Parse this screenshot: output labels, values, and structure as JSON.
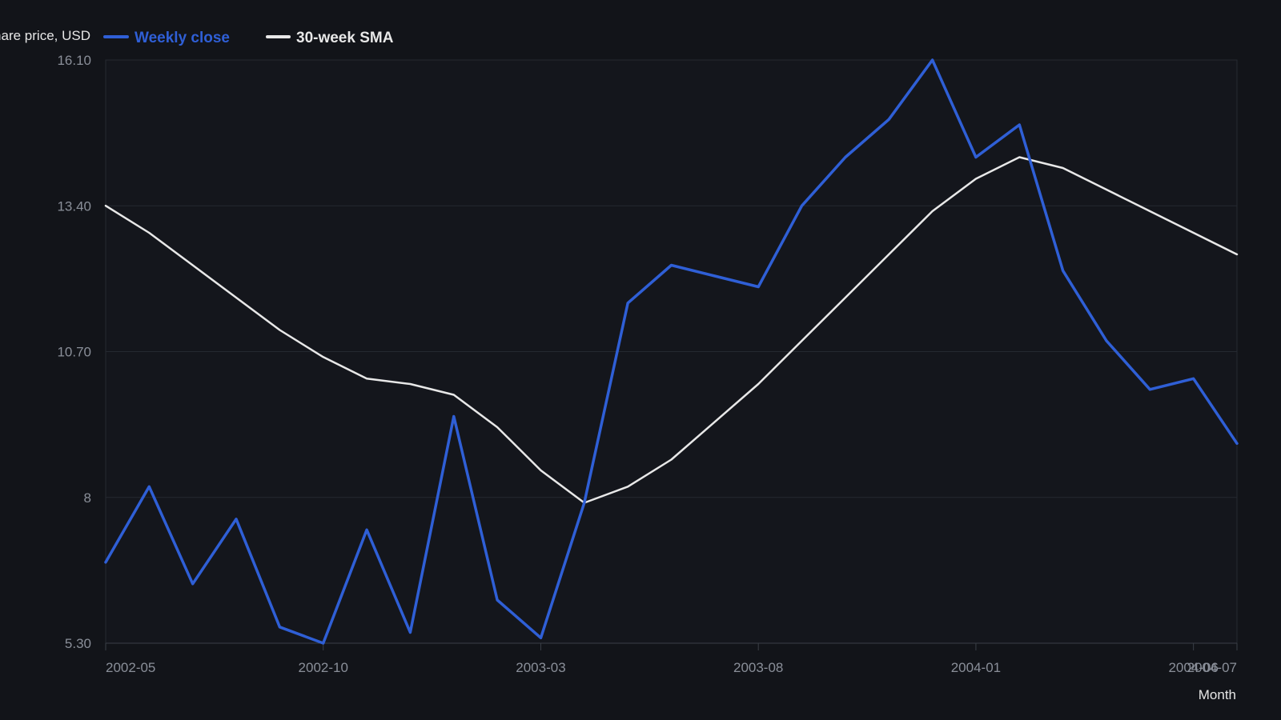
{
  "chart_data": {
    "type": "line",
    "ylabel": "Share price, USD",
    "xlabel": "Month",
    "ylim": [
      5.3,
      16.1
    ],
    "y_ticks": [
      "5.30",
      "8",
      "10.70",
      "13.40",
      "16.10"
    ],
    "x_start": "2002-05",
    "x_end": "2004-07",
    "x_ticks": [
      "2002-05",
      "2002-10",
      "2003-03",
      "2003-08",
      "2004-01",
      "2004-06",
      "2004-07"
    ],
    "grid": true,
    "legend_position": "top-left",
    "series": [
      {
        "name": "Weekly close",
        "color": "#2f5fd6",
        "x": [
          "2002-05",
          "2002-06",
          "2002-07",
          "2002-08",
          "2002-09",
          "2002-10",
          "2002-11",
          "2002-12",
          "2003-01",
          "2003-02",
          "2003-03",
          "2003-04",
          "2003-05",
          "2003-06",
          "2003-07",
          "2003-08",
          "2003-09",
          "2003-10",
          "2003-11",
          "2003-12",
          "2004-01",
          "2004-02",
          "2004-03",
          "2004-04",
          "2004-05",
          "2004-06",
          "2004-07"
        ],
        "values": [
          6.8,
          8.2,
          6.4,
          7.6,
          5.6,
          5.3,
          7.4,
          5.5,
          9.5,
          6.1,
          5.4,
          7.9,
          11.6,
          12.3,
          12.1,
          11.9,
          13.4,
          14.3,
          15.0,
          16.1,
          14.3,
          14.9,
          12.2,
          10.9,
          10.0,
          10.2,
          9.0
        ],
        "data_labels": [
          "6.8",
          "8.2",
          "6.4",
          "7.6",
          "5.6",
          "5.3",
          "7.4",
          "5.5",
          "9.5",
          "6.1",
          "5.4",
          "7.9",
          "11.6",
          "12.3",
          "12.1",
          "11.9",
          "13.4",
          "14.3",
          "15.0",
          "16.1",
          "14.3",
          "14.9",
          "12.2",
          "10.9",
          "10.0",
          "10.2",
          "9.0"
        ]
      },
      {
        "name": "30-week SMA",
        "color": "#e8e8e8",
        "x": [
          "2002-05",
          "2002-06",
          "2002-07",
          "2002-08",
          "2002-09",
          "2002-10",
          "2002-11",
          "2002-12",
          "2003-01",
          "2003-02",
          "2003-03",
          "2003-04",
          "2003-05",
          "2003-06",
          "2003-07",
          "2003-08",
          "2003-09",
          "2003-10",
          "2003-11",
          "2003-12",
          "2004-01",
          "2004-02",
          "2004-03",
          "2004-04",
          "2004-05",
          "2004-06",
          "2004-07"
        ],
        "values": [
          13.4,
          12.9,
          12.3,
          11.7,
          11.1,
          10.6,
          10.2,
          10.1,
          9.9,
          9.3,
          8.5,
          7.9,
          8.2,
          8.7,
          9.4,
          10.1,
          10.9,
          11.7,
          12.5,
          13.3,
          13.9,
          14.3,
          14.1,
          13.7,
          13.3,
          12.9,
          12.5
        ],
        "data_labels": [
          "13.4",
          "12.9",
          "12.3",
          "11.7",
          "11.1",
          "10.6",
          "10.2",
          "10.1",
          "9.9",
          "9.3",
          "8.5",
          "7.9",
          "8.2",
          "8.7",
          "9.4",
          "10.1",
          "10.9",
          "11.7",
          "12.5",
          "13.3",
          "13.9",
          "14.3",
          "14.1",
          "13.7",
          "13.3",
          "12.9",
          "12.5"
        ]
      }
    ]
  }
}
